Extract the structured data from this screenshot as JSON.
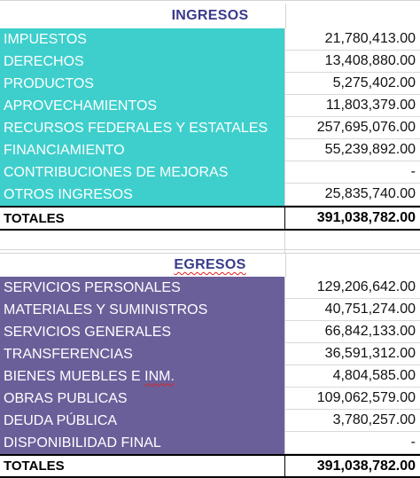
{
  "ingresos": {
    "title": "INGRESOS",
    "rows": [
      {
        "label": "IMPUESTOS",
        "value": "21,780,413.00"
      },
      {
        "label": "DERECHOS",
        "value": "13,408,880.00"
      },
      {
        "label": "PRODUCTOS",
        "value": "5,275,402.00"
      },
      {
        "label": "APROVECHAMIENTOS",
        "value": "11,803,379.00"
      },
      {
        "label": "RECURSOS FEDERALES Y ESTATALES",
        "value": "257,695,076.00"
      },
      {
        "label": "FINANCIAMIENTO",
        "value": "55,239,892.00"
      },
      {
        "label": "CONTRIBUCIONES DE MEJORAS",
        "value": "-"
      },
      {
        "label": "OTROS INGRESOS",
        "value": "25,835,740.00"
      }
    ],
    "total_label": "TOTALES",
    "total_value": "391,038,782.00",
    "row_color": "#3ecfcc"
  },
  "egresos": {
    "title": "EGRESOS",
    "rows": [
      {
        "label": "SERVICIOS PERSONALES",
        "value": "129,206,642.00"
      },
      {
        "label": "MATERIALES Y SUMINISTROS",
        "value": "40,751,274.00"
      },
      {
        "label": "SERVICIOS GENERALES",
        "value": "66,842,133.00"
      },
      {
        "label": "TRANSFERENCIAS",
        "value": "36,591,312.00"
      },
      {
        "label": "BIENES MUEBLES E INM.",
        "value": "4,804,585.00"
      },
      {
        "label": "OBRAS PUBLICAS",
        "value": "109,062,579.00"
      },
      {
        "label": "DEUDA PÚBLICA",
        "value": "3,780,257.00"
      },
      {
        "label": "DISPONIBILIDAD FINAL",
        "value": "-"
      }
    ],
    "total_label": "TOTALES",
    "total_value": "391,038,782.00",
    "row_color": "#6b5f9a"
  }
}
